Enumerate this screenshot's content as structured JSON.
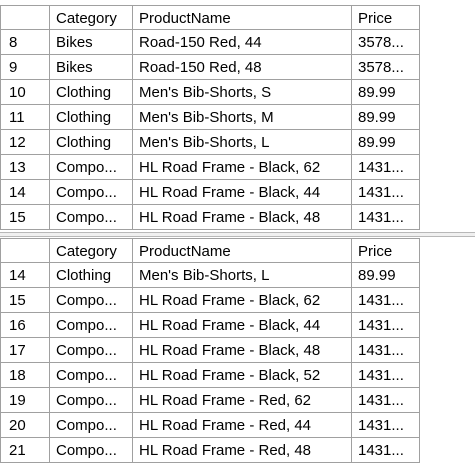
{
  "grid1": {
    "columns": [
      "Category",
      "ProductName",
      "Price"
    ],
    "rows": [
      {
        "idx": "8",
        "category": "Bikes",
        "name": "Road-150 Red, 44",
        "price": "3578..."
      },
      {
        "idx": "9",
        "category": "Bikes",
        "name": "Road-150 Red, 48",
        "price": "3578..."
      },
      {
        "idx": "10",
        "category": "Clothing",
        "name": "Men's Bib-Shorts, S",
        "price": "89.99"
      },
      {
        "idx": "11",
        "category": "Clothing",
        "name": "Men's Bib-Shorts, M",
        "price": "89.99"
      },
      {
        "idx": "12",
        "category": "Clothing",
        "name": "Men's Bib-Shorts, L",
        "price": "89.99"
      },
      {
        "idx": "13",
        "category": "Compo...",
        "name": "HL Road Frame - Black, 62",
        "price": "1431..."
      },
      {
        "idx": "14",
        "category": "Compo...",
        "name": "HL Road Frame - Black, 44",
        "price": "1431..."
      },
      {
        "idx": "15",
        "category": "Compo...",
        "name": "HL Road Frame - Black, 48",
        "price": "1431..."
      }
    ]
  },
  "grid2": {
    "columns": [
      "Category",
      "ProductName",
      "Price"
    ],
    "rows": [
      {
        "idx": "14",
        "category": "Clothing",
        "name": "Men's Bib-Shorts, L",
        "price": "89.99"
      },
      {
        "idx": "15",
        "category": "Compo...",
        "name": "HL Road Frame - Black, 62",
        "price": "1431..."
      },
      {
        "idx": "16",
        "category": "Compo...",
        "name": "HL Road Frame - Black, 44",
        "price": "1431..."
      },
      {
        "idx": "17",
        "category": "Compo...",
        "name": "HL Road Frame - Black, 48",
        "price": "1431..."
      },
      {
        "idx": "18",
        "category": "Compo...",
        "name": "HL Road Frame - Black, 52",
        "price": "1431..."
      },
      {
        "idx": "19",
        "category": "Compo...",
        "name": "HL Road Frame - Red, 62",
        "price": "1431..."
      },
      {
        "idx": "20",
        "category": "Compo...",
        "name": "HL Road Frame - Red, 44",
        "price": "1431..."
      },
      {
        "idx": "21",
        "category": "Compo...",
        "name": "HL Road Frame - Red, 48",
        "price": "1431..."
      }
    ]
  }
}
